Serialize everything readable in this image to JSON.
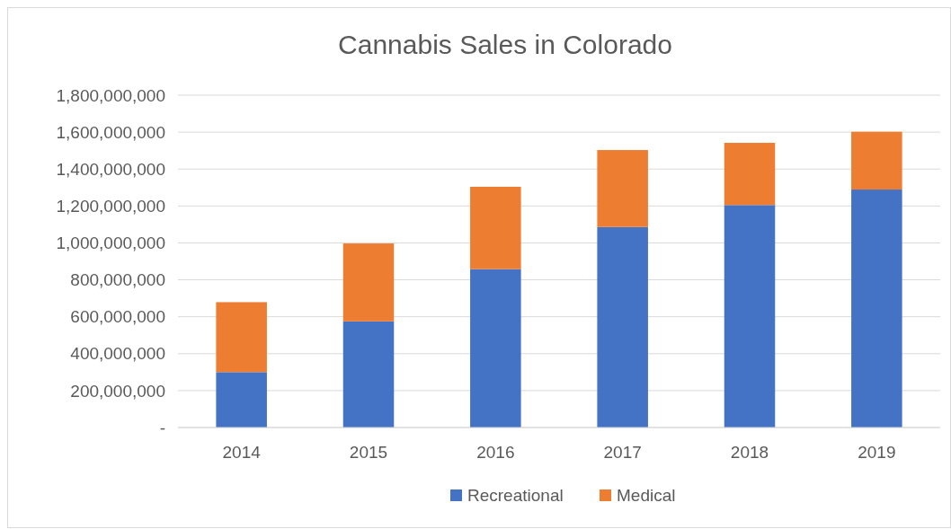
{
  "chart_data": {
    "type": "bar",
    "title": "Cannabis Sales in Colorado",
    "categories": [
      "2014",
      "2015",
      "2016",
      "2017",
      "2018",
      "2019"
    ],
    "stacked": true,
    "series": [
      {
        "name": "Recreational",
        "color": "#4472c4",
        "values": [
          300000000,
          575000000,
          858000000,
          1086000000,
          1205000000,
          1289000000
        ]
      },
      {
        "name": "Medical",
        "color": "#ed7d31",
        "values": [
          379000000,
          422000000,
          446000000,
          417000000,
          337000000,
          313000000
        ]
      }
    ],
    "ylim": [
      0,
      1800000000
    ],
    "yticks": [
      {
        "value": 0,
        "label": "-"
      },
      {
        "value": 200000000,
        "label": "200,000,000"
      },
      {
        "value": 400000000,
        "label": "400,000,000"
      },
      {
        "value": 600000000,
        "label": "600,000,000"
      },
      {
        "value": 800000000,
        "label": "800,000,000"
      },
      {
        "value": 1000000000,
        "label": "1,000,000,000"
      },
      {
        "value": 1200000000,
        "label": "1,200,000,000"
      },
      {
        "value": 1400000000,
        "label": "1,400,000,000"
      },
      {
        "value": 1600000000,
        "label": "1,600,000,000"
      },
      {
        "value": 1800000000,
        "label": "1,800,000,000"
      }
    ],
    "grid": "y",
    "legend": "bottom"
  }
}
